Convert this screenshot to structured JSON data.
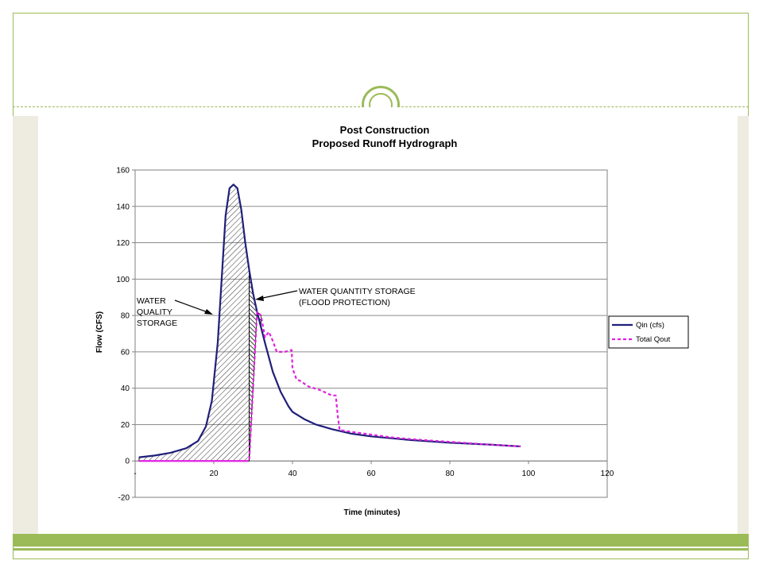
{
  "theme": {
    "accent": "#9bbb59",
    "side_panel": "#eeece1"
  },
  "chart_data": {
    "type": "line",
    "title": "Post Construction",
    "subtitle": "Proposed Runoff Hydrograph",
    "xlabel": "Time (minutes)",
    "ylabel": "Flow (CFS)",
    "xlim": [
      0,
      120
    ],
    "ylim": [
      -20,
      160
    ],
    "x_ticks": [
      "-",
      "20",
      "40",
      "60",
      "80",
      "100",
      "120"
    ],
    "y_ticks": [
      "-20",
      "0",
      "20",
      "40",
      "60",
      "80",
      "100",
      "120",
      "140",
      "160"
    ],
    "grid": true,
    "legend_position": "right",
    "series": [
      {
        "name": "Qin (cfs)",
        "color": "#1f1f7a",
        "style": "solid",
        "x": [
          1,
          5,
          9,
          13,
          16,
          18,
          19.5,
          21,
          22,
          23,
          24,
          25,
          26,
          27,
          28,
          29,
          30,
          31,
          33,
          35,
          37,
          39,
          40,
          43,
          46,
          50,
          55,
          60,
          70,
          80,
          90,
          98
        ],
        "y": [
          2,
          3,
          4.5,
          7,
          11,
          19,
          33,
          65,
          100,
          135,
          150,
          152,
          150,
          138,
          120,
          105,
          92,
          82,
          65,
          49,
          38,
          30,
          27,
          23,
          20,
          17.5,
          15,
          13.5,
          11.5,
          10,
          9,
          8
        ]
      },
      {
        "name": "Total Qout",
        "color": "#e020e0",
        "style": "dashed",
        "x": [
          28,
          29,
          31,
          32,
          33,
          34,
          35,
          36,
          38,
          39.8,
          40,
          40.5,
          41,
          42,
          44,
          47,
          50,
          51,
          51.5,
          52,
          55,
          60,
          65,
          70,
          80,
          90,
          98
        ],
        "y": [
          0,
          0,
          82,
          80,
          68,
          71,
          66,
          60,
          60,
          61,
          51,
          48,
          45,
          44,
          41,
          39,
          36,
          36,
          25,
          17,
          16,
          14.5,
          13,
          12,
          10.5,
          9,
          8
        ]
      }
    ],
    "annotations": [
      {
        "text_lines": [
          "WATER",
          "QUALITY",
          "STORAGE"
        ]
      },
      {
        "text_lines": [
          "WATER QUANTITY STORAGE",
          "(FLOOD PROTECTION)"
        ]
      }
    ]
  }
}
